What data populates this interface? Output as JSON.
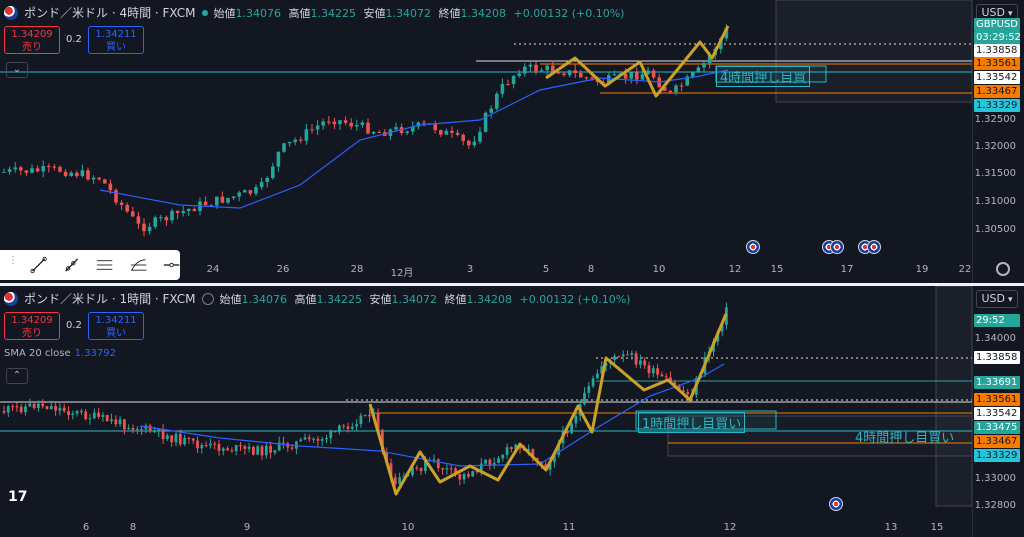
{
  "symbol_title_4h": "ポンド／米ドル · 4時間 · FXCM",
  "symbol_title_1h": "ポンド／米ドル · 1時間 · FXCM",
  "ohlc": {
    "open_label": "始値",
    "open": "1.34076",
    "high_label": "高値",
    "high": "1.34225",
    "low_label": "安値",
    "low": "1.34072",
    "close_label": "終値",
    "close": "1.34208",
    "change": "+0.00132 (+0.10%)"
  },
  "trade": {
    "sell_price": "1.34209",
    "sell_label": "売り",
    "buy_price": "1.34211",
    "buy_label": "買い",
    "spread": "0.2"
  },
  "currency": "USD",
  "panel1": {
    "ticker_badge": "GBPUSD",
    "countdown": "03:29:52",
    "price_labels": [
      {
        "value": "1.33858",
        "bg": "#ffffff",
        "fg": "#131722"
      },
      {
        "value": "1.33561",
        "bg": "#f57c00",
        "fg": "#131722"
      },
      {
        "value": "1.33542",
        "bg": "#ffffff",
        "fg": "#131722"
      },
      {
        "value": "1.33467",
        "bg": "#f57c00",
        "fg": "#131722"
      },
      {
        "value": "1.33329",
        "bg": "#26c6da",
        "fg": "#131722"
      }
    ],
    "y_ticks": [
      "1.32500",
      "1.32000",
      "1.31500",
      "1.31000",
      "1.30500"
    ],
    "x_ticks": [
      "24",
      "26",
      "28",
      "12月",
      "3",
      "5",
      "8",
      "10",
      "12",
      "15",
      "17",
      "19",
      "22"
    ],
    "annotation": "4時間押し目買"
  },
  "panel2": {
    "countdown": "29:52",
    "sma_label": "SMA 20 close",
    "sma_value": "1.33792",
    "price_labels": [
      {
        "value": "1.33858",
        "bg": "#ffffff",
        "fg": "#131722"
      },
      {
        "value": "1.33691",
        "bg": "#26a69a",
        "fg": "#ffffff"
      },
      {
        "value": "1.33561",
        "bg": "#f57c00",
        "fg": "#131722"
      },
      {
        "value": "1.33542",
        "bg": "#ffffff",
        "fg": "#131722"
      },
      {
        "value": "1.33475",
        "bg": "#26a69a",
        "fg": "#ffffff"
      },
      {
        "value": "1.33467",
        "bg": "#f57c00",
        "fg": "#131722"
      },
      {
        "value": "1.33329",
        "bg": "#26c6da",
        "fg": "#131722"
      }
    ],
    "y_ticks": [
      "1.34000",
      "1.33000",
      "1.32800"
    ],
    "x_ticks": [
      "6",
      "8",
      "9",
      "10",
      "11",
      "12",
      "13",
      "15"
    ],
    "annotation_1h": "1時間押し目買い",
    "annotation_4h": "4時間押し目買い"
  },
  "colors": {
    "bull": "#26a69a",
    "bear": "#ef5350",
    "sma": "#2962ff",
    "zigzag": "#c9a227"
  },
  "icons": [
    "flag-icon",
    "eye-icon",
    "gear-icon",
    "event-flag-icon",
    "tradingview-logo"
  ]
}
